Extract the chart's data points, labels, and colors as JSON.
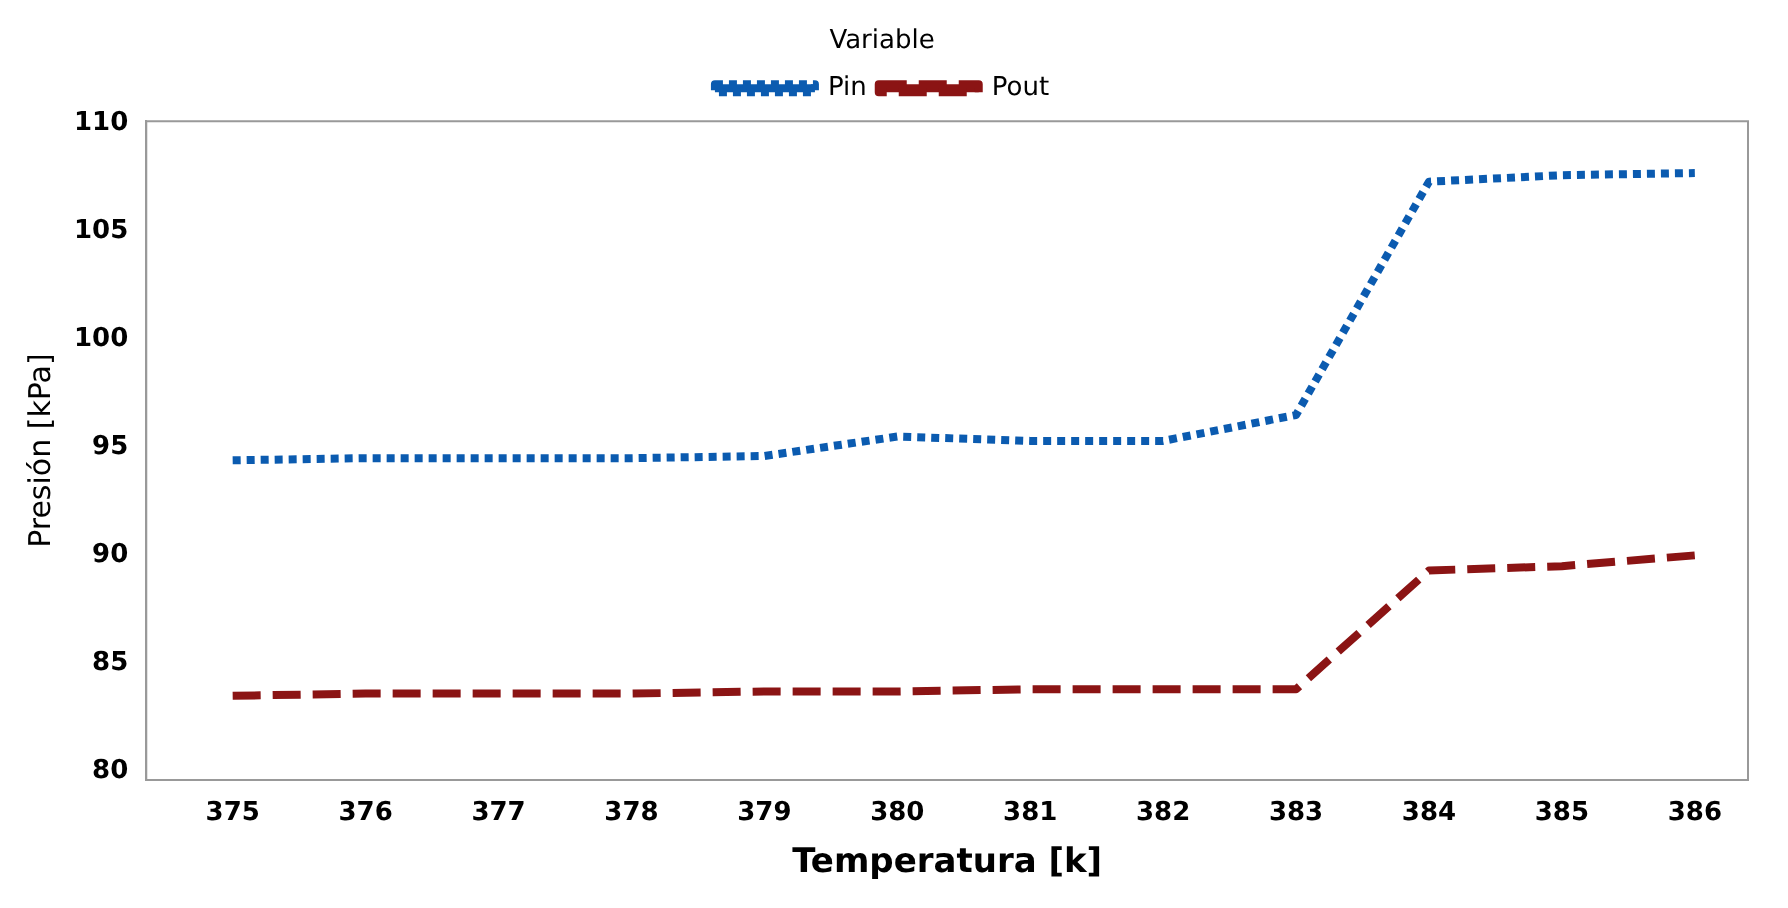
{
  "chart_data": {
    "type": "line",
    "xlabel": "Temperatura [k]",
    "ylabel": "Presión [kPa]",
    "legend_title": "Variable",
    "legend": "top",
    "x": [
      375,
      376,
      377,
      378,
      379,
      380,
      381,
      382,
      383,
      384,
      385,
      386
    ],
    "series": [
      {
        "name": "Pin",
        "color": "#0b5bb0",
        "line_style": "dotted",
        "values": [
          94.4,
          94.5,
          94.5,
          94.5,
          94.6,
          95.5,
          95.3,
          95.3,
          96.5,
          107.3,
          107.6,
          107.7
        ]
      },
      {
        "name": "Pout",
        "color": "#8b1414",
        "line_style": "dashed",
        "values": [
          83.5,
          83.6,
          83.6,
          83.6,
          83.7,
          83.7,
          83.8,
          83.8,
          83.8,
          89.3,
          89.5,
          90.0
        ]
      }
    ],
    "xlim": [
      374.35,
      386.4
    ],
    "xticks": [
      375,
      376,
      377,
      378,
      379,
      380,
      381,
      382,
      383,
      384,
      385,
      386
    ],
    "ylim": [
      79.6,
      110.1
    ],
    "yticks": [
      80,
      85,
      90,
      95,
      100,
      105,
      110
    ],
    "grid": false,
    "marker": "none"
  }
}
